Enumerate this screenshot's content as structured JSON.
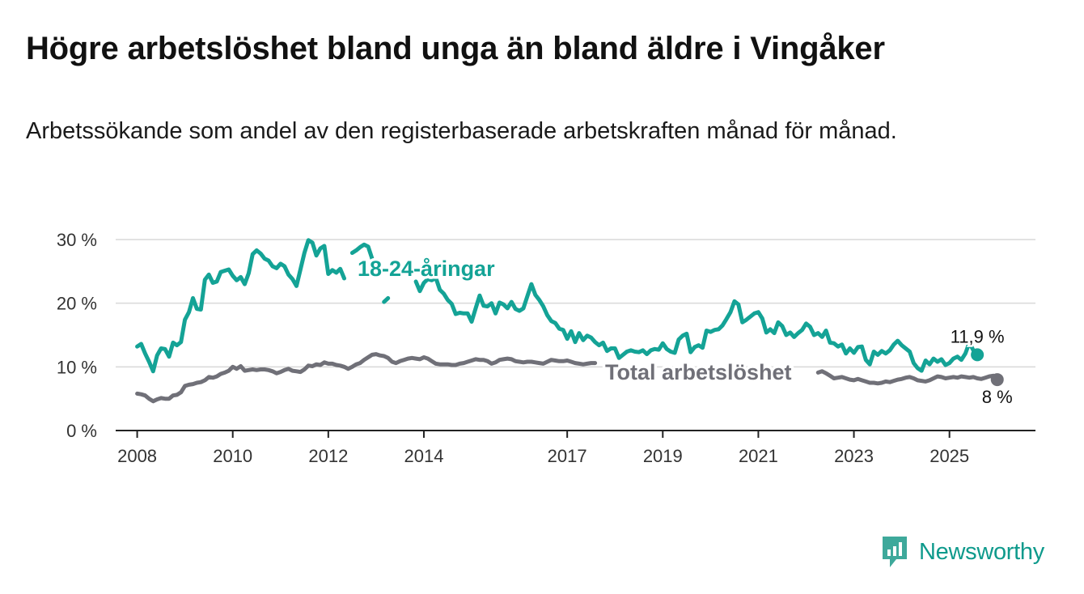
{
  "title": "Högre arbetslöshet bland unga än bland äldre i Vingåker",
  "subtitle": "Arbetssökande som andel av den registerbaserade arbetskraften månad för månad.",
  "brand": {
    "name": "Newsworthy"
  },
  "colors": {
    "youth": "#14a396",
    "total": "#707078",
    "grid": "#d9d9d9",
    "axis": "#222222"
  },
  "chart_data": {
    "type": "line",
    "title": "Högre arbetslöshet bland unga än bland äldre i Vingåker",
    "xlabel": "",
    "ylabel": "",
    "x_start": 2008.0,
    "x_step_months": 1,
    "ylim": [
      0,
      30
    ],
    "xlim": [
      2007.55,
      2026.8
    ],
    "y_ticks": [
      0,
      10,
      20,
      30
    ],
    "y_tick_labels": [
      "0 %",
      "10 %",
      "20 %",
      "30 %"
    ],
    "x_ticks": [
      2008,
      2010,
      2012,
      2014,
      2017,
      2019,
      2021,
      2023,
      2025
    ],
    "x_tick_labels": [
      "2008",
      "2010",
      "2012",
      "2014",
      "2017",
      "2019",
      "2021",
      "2023",
      "2025"
    ],
    "series": [
      {
        "name": "18-24-åringar",
        "label": "18-24-åringar",
        "end_label": "11,9 %",
        "values": [
          13.2,
          13.6,
          12.1,
          10.8,
          9.3,
          11.8,
          12.9,
          12.8,
          11.6,
          13.8,
          13.4,
          13.9,
          17.4,
          18.6,
          20.8,
          19.1,
          19.0,
          23.7,
          24.5,
          23.2,
          23.4,
          24.9,
          25.1,
          25.3,
          24.3,
          23.6,
          24.1,
          23.0,
          24.7,
          27.7,
          28.3,
          27.8,
          27.0,
          26.7,
          25.8,
          25.5,
          26.2,
          25.8,
          24.5,
          23.8,
          22.7,
          25.3,
          27.9,
          29.9,
          29.5,
          27.5,
          28.6,
          29.0,
          24.6,
          25.2,
          24.8,
          25.4,
          23.9,
          null,
          27.9,
          28.3,
          28.8,
          29.2,
          28.9,
          27.0,
          null,
          null,
          20.2,
          20.8,
          null,
          null,
          null,
          null,
          null,
          null,
          23.4,
          21.9,
          23.2,
          23.8,
          23.6,
          24.0,
          22.1,
          21.5,
          20.5,
          19.9,
          18.3,
          18.5,
          18.4,
          18.4,
          17.1,
          19.2,
          21.2,
          19.6,
          19.5,
          20.0,
          18.4,
          20.1,
          19.8,
          19.2,
          20.2,
          19.1,
          18.8,
          19.2,
          21.1,
          23.0,
          21.3,
          20.5,
          19.5,
          18.1,
          17.2,
          16.9,
          16.0,
          15.8,
          14.4,
          15.6,
          13.9,
          15.3,
          14.2,
          14.9,
          14.6,
          13.9,
          13.4,
          13.8,
          12.5,
          12.9,
          12.9,
          11.4,
          11.9,
          12.4,
          12.6,
          12.4,
          12.3,
          12.6,
          12.0,
          12.6,
          12.8,
          12.7,
          13.7,
          12.8,
          12.4,
          12.2,
          14.3,
          14.9,
          15.2,
          12.3,
          13.1,
          13.4,
          13.0,
          15.7,
          15.5,
          15.8,
          15.9,
          16.5,
          17.5,
          18.6,
          20.3,
          19.8,
          17.0,
          17.4,
          17.9,
          18.4,
          18.6,
          17.6,
          15.4,
          15.9,
          15.3,
          17.0,
          16.4,
          15.0,
          15.4,
          14.7,
          15.3,
          15.8,
          16.8,
          16.3,
          15.0,
          15.3,
          14.7,
          15.7,
          13.8,
          13.7,
          13.2,
          13.5,
          12.1,
          12.9,
          12.2,
          13.1,
          13.2,
          11.1,
          10.4,
          12.4,
          11.9,
          12.5,
          12.1,
          12.6,
          13.5,
          14.1,
          13.4,
          12.9,
          12.4,
          10.6,
          9.8,
          9.4,
          11.0,
          10.4,
          11.3,
          10.8,
          11.2,
          10.3,
          10.6,
          11.3,
          11.6,
          11.1,
          12.1,
          13.8,
          12.6,
          11.9
        ]
      },
      {
        "name": "Total arbetslöshet",
        "label": "Total arbetslöshet",
        "end_label": "8 %",
        "values": [
          5.8,
          5.7,
          5.5,
          5.0,
          4.6,
          4.9,
          5.1,
          5.0,
          5.0,
          5.5,
          5.6,
          6.0,
          7.0,
          7.2,
          7.3,
          7.5,
          7.6,
          7.9,
          8.4,
          8.3,
          8.5,
          8.9,
          9.1,
          9.4,
          10.0,
          9.7,
          10.1,
          9.4,
          9.5,
          9.6,
          9.5,
          9.6,
          9.6,
          9.5,
          9.3,
          9.0,
          9.2,
          9.5,
          9.7,
          9.4,
          9.3,
          9.2,
          9.6,
          10.2,
          10.1,
          10.4,
          10.3,
          10.7,
          10.5,
          10.5,
          10.3,
          10.2,
          10.0,
          9.7,
          10.0,
          10.4,
          10.6,
          11.1,
          11.5,
          11.9,
          12.0,
          11.8,
          11.7,
          11.4,
          10.8,
          10.6,
          10.9,
          11.1,
          11.3,
          11.4,
          11.3,
          11.2,
          11.5,
          11.3,
          10.9,
          10.5,
          10.4,
          10.4,
          10.4,
          10.3,
          10.3,
          10.5,
          10.6,
          10.8,
          11.0,
          11.2,
          11.1,
          11.1,
          10.9,
          10.5,
          10.7,
          11.1,
          11.2,
          11.3,
          11.2,
          10.9,
          10.8,
          10.7,
          10.8,
          10.8,
          10.7,
          10.6,
          10.5,
          10.8,
          11.1,
          11.0,
          10.9,
          10.9,
          11.0,
          10.8,
          10.6,
          10.5,
          10.4,
          10.5,
          10.6,
          10.6,
          null,
          null,
          null,
          null,
          null,
          null,
          null,
          null,
          null,
          null,
          null,
          null,
          null,
          null,
          null,
          null,
          null,
          null,
          null,
          null,
          null,
          null,
          null,
          null,
          null,
          null,
          null,
          null,
          null,
          null,
          null,
          null,
          null,
          null,
          null,
          null,
          null,
          null,
          null,
          null,
          null,
          null,
          null,
          null,
          null,
          null,
          null,
          null,
          null,
          null,
          null,
          null,
          null,
          null,
          null,
          9.1,
          9.3,
          9.0,
          8.6,
          8.2,
          8.3,
          8.4,
          8.2,
          8.0,
          7.9,
          8.1,
          7.9,
          7.7,
          7.5,
          7.5,
          7.4,
          7.5,
          7.7,
          7.6,
          7.8,
          8.0,
          8.1,
          8.3,
          8.4,
          8.2,
          7.9,
          7.8,
          7.7,
          7.9,
          8.2,
          8.5,
          8.4,
          8.2,
          8.3,
          8.4,
          8.3,
          8.5,
          8.4,
          8.3,
          8.4,
          8.2,
          8.1,
          8.3,
          8.5,
          8.6,
          8.0
        ]
      }
    ]
  }
}
